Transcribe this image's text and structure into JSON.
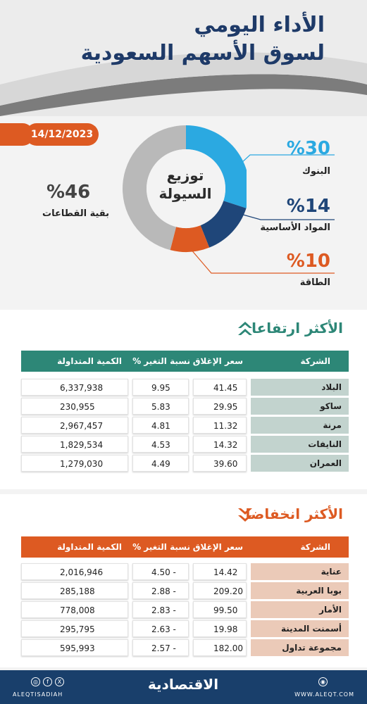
{
  "header": {
    "title_line1": "الأداء اليومي",
    "title_line2": "لسوق الأسهم السعودية",
    "date": "14/12/2023"
  },
  "chart_data": {
    "type": "pie",
    "center_label_line1": "توزيع",
    "center_label_line2": "السيولة",
    "slices": [
      {
        "label": "البنوك",
        "display": "%30",
        "value": 30,
        "color": "#2ba9e1"
      },
      {
        "label": "المواد الأساسية",
        "display": "%14",
        "value": 14,
        "color": "#1f4679"
      },
      {
        "label": "الطاقة",
        "display": "%10",
        "value": 10,
        "color": "#dd5a22"
      },
      {
        "label": "بقية القطاعات",
        "display": "%46",
        "value": 46,
        "color": "#b9b9b9"
      }
    ]
  },
  "gainers": {
    "heading": "الأكثر ارتفاعا",
    "header_color": "#2d8777",
    "columns": [
      "الشركة",
      "سعر الإغلاق",
      "نسبة التغير %",
      "الكمية المتداولة"
    ],
    "rows": [
      {
        "name": "البلاد",
        "close": "41.45",
        "change": "9.95",
        "volume": "6,337,938"
      },
      {
        "name": "ساكو",
        "close": "29.95",
        "change": "5.83",
        "volume": "230,955"
      },
      {
        "name": "مرنة",
        "close": "11.32",
        "change": "4.81",
        "volume": "2,967,457"
      },
      {
        "name": "النايفات",
        "close": "14.32",
        "change": "4.53",
        "volume": "1,829,534"
      },
      {
        "name": "العمران",
        "close": "39.60",
        "change": "4.49",
        "volume": "1,279,030"
      }
    ]
  },
  "losers": {
    "heading": "الأكثر انخفاضا",
    "header_color": "#dd5a22",
    "columns": [
      "الشركة",
      "سعر الإغلاق",
      "نسبة التغير %",
      "الكمية المتداولة"
    ],
    "rows": [
      {
        "name": "عناية",
        "close": "14.42",
        "change": "4.50 -",
        "volume": "2,016,946"
      },
      {
        "name": "بوبا العربية",
        "close": "209.20",
        "change": "2.88 -",
        "volume": "285,188"
      },
      {
        "name": "الأمار",
        "close": "99.50",
        "change": "2.83 -",
        "volume": "778,008"
      },
      {
        "name": "أسمنت المدينة",
        "close": "19.98",
        "change": "2.63 -",
        "volume": "295,795"
      },
      {
        "name": "مجموعة تداول",
        "close": "182.00",
        "change": "2.57 -",
        "volume": "595,993"
      }
    ]
  },
  "footer": {
    "brand": "الاقتصادية",
    "handle": "ALEQTISADIAH",
    "site": "WWW.ALEQT.COM"
  },
  "colors": {
    "navy": "#1e3a68",
    "orange": "#dd5a22",
    "teal": "#2d8777",
    "blue": "#2ba9e1"
  }
}
